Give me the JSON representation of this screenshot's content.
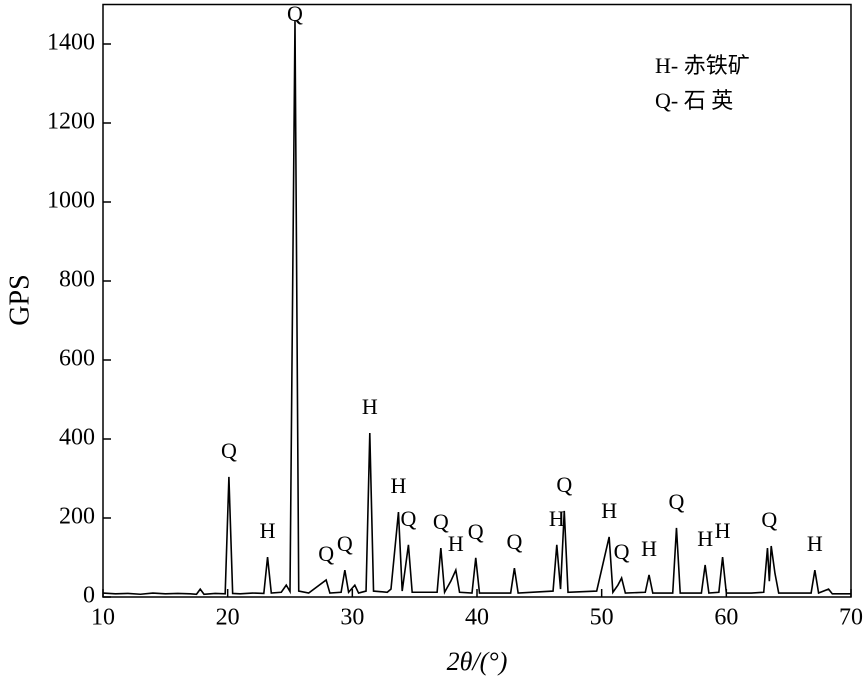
{
  "chart_data": {
    "type": "line",
    "xlabel": "2θ/(°)",
    "ylabel": "GPS",
    "xlim": [
      10,
      70
    ],
    "ylim": [
      0,
      1500
    ],
    "xticks": [
      10,
      20,
      30,
      40,
      50,
      60,
      70
    ],
    "yticks": [
      0,
      200,
      400,
      600,
      800,
      1000,
      1200,
      1400
    ],
    "legend_texts": [
      "H- 赤铁矿",
      "Q- 石 英"
    ],
    "series": [
      {
        "color": "#000000",
        "x": [
          10,
          11,
          12,
          13,
          14,
          15,
          16,
          17,
          17.5,
          17.8,
          18.1,
          19,
          19.8,
          20.1,
          20.4,
          21,
          22,
          22.9,
          23.2,
          23.5,
          24.3,
          24.7,
          25.0,
          25.4,
          25.7,
          26.5,
          27.9,
          28.2,
          29.1,
          29.4,
          29.7,
          30.2,
          30.5,
          31.1,
          31.4,
          31.7,
          32.8,
          33.1,
          33.7,
          34.0,
          34.5,
          34.8,
          36.8,
          37.1,
          37.4,
          37.9,
          38.3,
          38.6,
          39.6,
          39.9,
          40.2,
          42.7,
          43.0,
          43.3,
          46.1,
          46.4,
          46.7,
          47.0,
          47.3,
          49.6,
          50.6,
          50.9,
          51.3,
          51.6,
          51.9,
          53.5,
          53.8,
          54.1,
          55.7,
          56.0,
          56.3,
          58.0,
          58.3,
          58.6,
          59.4,
          59.7,
          60.0,
          62.0,
          63.0,
          63.3,
          63.45,
          63.6,
          63.9,
          64.2,
          66.8,
          67.1,
          67.4,
          68.2,
          68.5,
          70
        ],
        "values": [
          10,
          8,
          9,
          7,
          10,
          8,
          9,
          8,
          7,
          20,
          7,
          9,
          8,
          304,
          9,
          8,
          10,
          9,
          101,
          10,
          12,
          30,
          14,
          1460,
          15,
          10,
          43,
          10,
          12,
          68,
          12,
          30,
          10,
          15,
          415,
          15,
          12,
          20,
          215,
          15,
          132,
          12,
          12,
          124,
          12,
          40,
          68,
          12,
          10,
          99,
          10,
          10,
          73,
          10,
          15,
          132,
          20,
          218,
          12,
          15,
          152,
          12,
          30,
          48,
          10,
          12,
          56,
          10,
          10,
          175,
          10,
          10,
          81,
          10,
          12,
          101,
          10,
          10,
          12,
          124,
          40,
          129,
          60,
          10,
          10,
          68,
          10,
          20,
          8,
          8
        ]
      }
    ],
    "annotations": [
      {
        "text": "Q",
        "x": 20.1,
        "y": 304
      },
      {
        "text": "H",
        "x": 23.2,
        "y": 101
      },
      {
        "text": "Q",
        "x": 25.4,
        "y": 1460
      },
      {
        "text": "Q",
        "x": 27.9,
        "y": 43
      },
      {
        "text": "Q",
        "x": 29.4,
        "y": 68
      },
      {
        "text": "H",
        "x": 31.4,
        "y": 415
      },
      {
        "text": "H",
        "x": 33.7,
        "y": 215
      },
      {
        "text": "Q",
        "x": 34.5,
        "y": 132
      },
      {
        "text": "Q",
        "x": 37.1,
        "y": 124
      },
      {
        "text": "H",
        "x": 38.3,
        "y": 68
      },
      {
        "text": "Q",
        "x": 39.9,
        "y": 99
      },
      {
        "text": "Q",
        "x": 43.0,
        "y": 73
      },
      {
        "text": "H",
        "x": 46.4,
        "y": 132
      },
      {
        "text": "Q",
        "x": 47.0,
        "y": 218
      },
      {
        "text": "H",
        "x": 50.6,
        "y": 152
      },
      {
        "text": "Q",
        "x": 51.6,
        "y": 48
      },
      {
        "text": "H",
        "x": 53.8,
        "y": 56
      },
      {
        "text": "Q",
        "x": 56.0,
        "y": 175
      },
      {
        "text": "H",
        "x": 58.3,
        "y": 81
      },
      {
        "text": "H",
        "x": 59.7,
        "y": 101
      },
      {
        "text": "Q",
        "x": 63.45,
        "y": 129
      },
      {
        "text": "H",
        "x": 67.1,
        "y": 68
      }
    ]
  }
}
